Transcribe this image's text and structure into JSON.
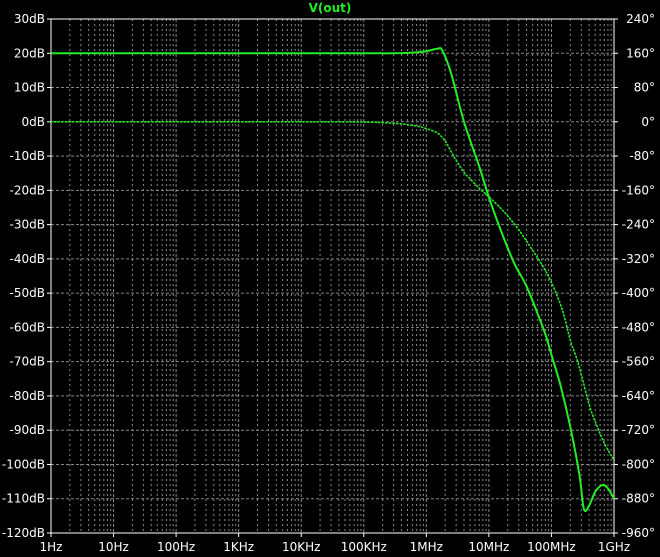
{
  "chart_data": {
    "type": "line",
    "title": "V(out)",
    "x_scale": "log",
    "xlim": [
      1,
      1000000000
    ],
    "x_ticks": [
      {
        "value": 1,
        "label": "1Hz"
      },
      {
        "value": 10,
        "label": "10Hz"
      },
      {
        "value": 100,
        "label": "100Hz"
      },
      {
        "value": 1000,
        "label": "1KHz"
      },
      {
        "value": 10000,
        "label": "10KHz"
      },
      {
        "value": 100000,
        "label": "100KHz"
      },
      {
        "value": 1000000,
        "label": "1MHz"
      },
      {
        "value": 10000000,
        "label": "10MHz"
      },
      {
        "value": 100000000,
        "label": "100MHz"
      },
      {
        "value": 1000000000,
        "label": "1GHz"
      }
    ],
    "y_left": {
      "ylim": [
        -120,
        30
      ],
      "ticks": [
        {
          "value": 30,
          "label": "30dB"
        },
        {
          "value": 20,
          "label": "20dB"
        },
        {
          "value": 10,
          "label": "10dB"
        },
        {
          "value": 0,
          "label": "0dB"
        },
        {
          "value": -10,
          "label": "-10dB"
        },
        {
          "value": -20,
          "label": "-20dB"
        },
        {
          "value": -30,
          "label": "-30dB"
        },
        {
          "value": -40,
          "label": "-40dB"
        },
        {
          "value": -50,
          "label": "-50dB"
        },
        {
          "value": -60,
          "label": "-60dB"
        },
        {
          "value": -70,
          "label": "-70dB"
        },
        {
          "value": -80,
          "label": "-80dB"
        },
        {
          "value": -90,
          "label": "-90dB"
        },
        {
          "value": -100,
          "label": "-100dB"
        },
        {
          "value": -110,
          "label": "-110dB"
        },
        {
          "value": -120,
          "label": "-120dB"
        }
      ]
    },
    "y_right": {
      "ylim": [
        -960,
        240
      ],
      "ticks": [
        {
          "value": 240,
          "label": "240°"
        },
        {
          "value": 160,
          "label": "160°"
        },
        {
          "value": 80,
          "label": "80°"
        },
        {
          "value": 0,
          "label": "0°"
        },
        {
          "value": -80,
          "label": "-80°"
        },
        {
          "value": -160,
          "label": "-160°"
        },
        {
          "value": -240,
          "label": "-240°"
        },
        {
          "value": -320,
          "label": "-320°"
        },
        {
          "value": -400,
          "label": "-400°"
        },
        {
          "value": -480,
          "label": "-480°"
        },
        {
          "value": -560,
          "label": "-560°"
        },
        {
          "value": -640,
          "label": "-640°"
        },
        {
          "value": -720,
          "label": "-720°"
        },
        {
          "value": -800,
          "label": "-800°"
        },
        {
          "value": -880,
          "label": "-880°"
        },
        {
          "value": -960,
          "label": "-960°"
        }
      ]
    },
    "grid": true,
    "grid_color": "#888888",
    "background_color": "#000000",
    "series": [
      {
        "axis": "left",
        "style": "solid",
        "color": "#22ee22",
        "x": [
          1,
          10,
          100,
          1000,
          10000,
          100000,
          300000,
          600000,
          1000000,
          1500000,
          1800000,
          2500000,
          4000000,
          7000000,
          10000000,
          15000000,
          25000000,
          40000000,
          60000000,
          80000000,
          100000000,
          140000000,
          200000000,
          280000000,
          330000000,
          400000000,
          500000000,
          650000000,
          800000000,
          1000000000
        ],
        "values": [
          20,
          20,
          20,
          20,
          20,
          20,
          20,
          20.2,
          20.6,
          21.3,
          20.8,
          14,
          0,
          -13,
          -22,
          -31,
          -41,
          -48,
          -56,
          -62,
          -68,
          -77,
          -89,
          -103,
          -113,
          -112,
          -108,
          -106,
          -107,
          -110
        ]
      },
      {
        "axis": "right",
        "style": "dotted",
        "color": "#22ee22",
        "x": [
          1,
          10,
          100,
          1000,
          10000,
          100000,
          200000,
          400000,
          700000,
          1000000,
          1500000,
          2000000,
          2500000,
          3000000,
          4000000,
          5000000,
          7000000,
          10000000,
          15000000,
          20000000,
          30000000,
          50000000,
          70000000,
          100000000,
          150000000,
          200000000,
          250000000,
          300000000,
          400000000,
          500000000,
          700000000,
          1000000000
        ],
        "values": [
          0,
          0,
          0,
          0,
          0,
          -0.5,
          -2,
          -5,
          -10,
          -16,
          -26,
          -45,
          -70,
          -90,
          -118,
          -133,
          -155,
          -175,
          -200,
          -220,
          -252,
          -300,
          -333,
          -375,
          -440,
          -510,
          -550,
          -590,
          -660,
          -700,
          -750,
          -790
        ]
      }
    ]
  }
}
